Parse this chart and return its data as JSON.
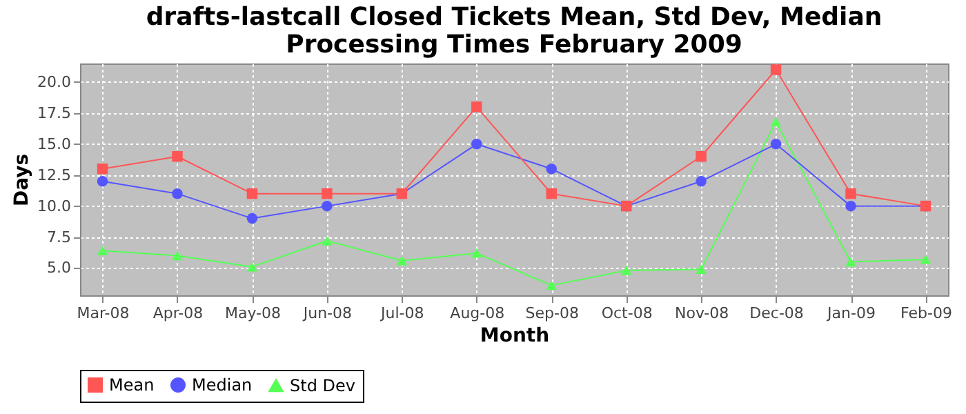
{
  "chart_data": {
    "type": "line",
    "title": "drafts-lastcall Closed Tickets Mean, Std Dev, Median Processing Times February 2009",
    "xlabel": "Month",
    "ylabel": "Days",
    "categories": [
      "Mar-08",
      "Apr-08",
      "May-08",
      "Jun-08",
      "Jul-08",
      "Aug-08",
      "Sep-08",
      "Oct-08",
      "Nov-08",
      "Dec-08",
      "Jan-09",
      "Feb-09"
    ],
    "series": [
      {
        "name": "Mean",
        "color": "#ff5555",
        "marker": "square",
        "values": [
          13,
          14,
          11,
          11,
          11,
          18,
          11,
          10,
          14,
          21,
          11,
          10
        ]
      },
      {
        "name": "Median",
        "color": "#5555ff",
        "marker": "circle",
        "values": [
          12,
          11,
          9,
          10,
          11,
          15,
          13,
          10,
          12,
          15,
          10,
          10
        ]
      },
      {
        "name": "Std Dev",
        "color": "#55ff55",
        "marker": "triangle",
        "values": [
          6.4,
          6.0,
          5.1,
          7.2,
          5.6,
          6.2,
          3.6,
          4.8,
          4.9,
          16.8,
          5.5,
          5.7
        ]
      }
    ],
    "ylim": [
      2.8,
      21.5
    ],
    "yticks": [
      {
        "value": 5,
        "label": "5.0"
      },
      7.5,
      {
        "value": 10,
        "label": "10.0"
      },
      12.5,
      {
        "value": 15,
        "label": "15.0"
      },
      17.5,
      {
        "value": 20,
        "label": "20.0"
      }
    ],
    "grid": true,
    "legend": "bottom"
  }
}
